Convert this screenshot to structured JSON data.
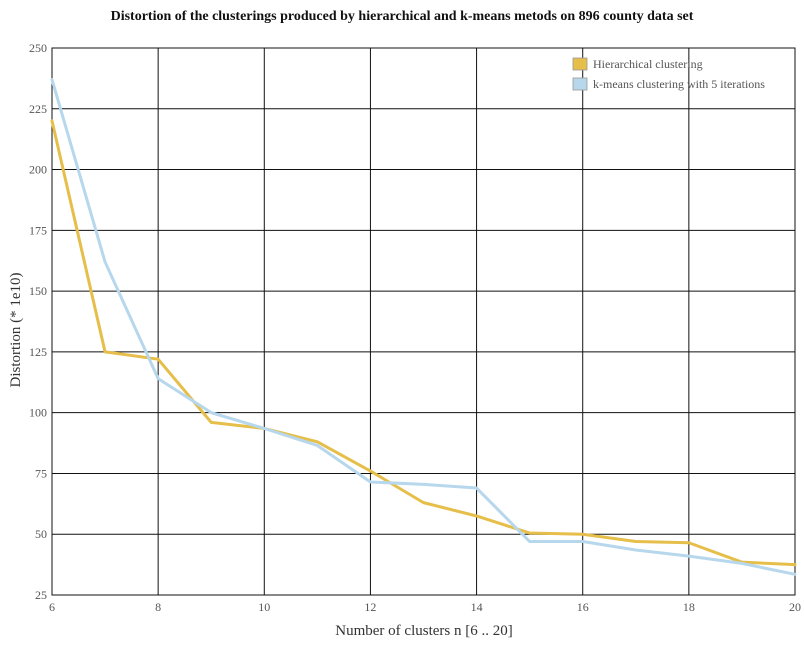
{
  "chart_data": {
    "type": "line",
    "title": "Distortion of the clusterings produced by hierarchical and k-means metods on 896 county data set",
    "xlabel": "Number of clusters n [6 .. 20]",
    "ylabel": "Distortion (* 1e10)",
    "xlim": [
      6,
      20
    ],
    "ylim": [
      25,
      250
    ],
    "xticks": [
      6,
      8,
      10,
      12,
      14,
      16,
      18,
      20
    ],
    "yticks": [
      25,
      50,
      75,
      100,
      125,
      150,
      175,
      200,
      225,
      250
    ],
    "grid": true,
    "legend_position": "top-right",
    "x": [
      6,
      7,
      8,
      9,
      10,
      11,
      12,
      13,
      14,
      15,
      16,
      17,
      18,
      19,
      20
    ],
    "series": [
      {
        "name": "Hierarchical clustering",
        "color": "#e6be4a",
        "values": [
          220,
          125,
          122,
          96,
          93.5,
          88,
          76,
          63,
          57.5,
          50.5,
          50,
          47,
          46.5,
          38.5,
          37.5
        ]
      },
      {
        "name": "k-means clustering with 5 iterations",
        "color": "#b7d7ec",
        "values": [
          237,
          162,
          114,
          100,
          93.5,
          86.5,
          71.5,
          70.5,
          69,
          47,
          47,
          43.5,
          41,
          38,
          33.5
        ]
      }
    ]
  }
}
